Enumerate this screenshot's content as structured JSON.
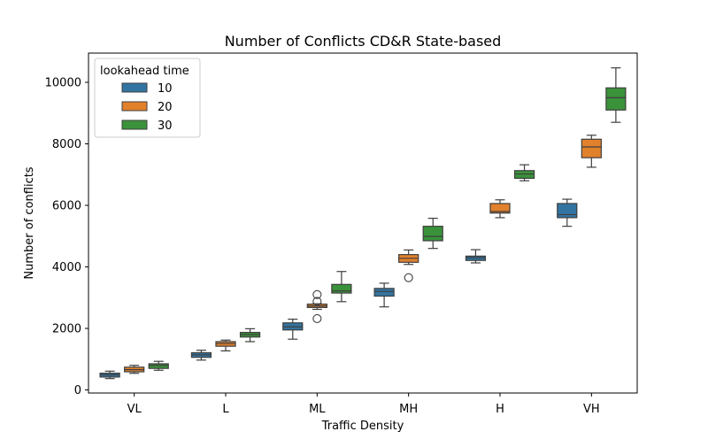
{
  "chart_data": {
    "type": "box",
    "title": "Number of Conflicts CD&R State-based",
    "xlabel": "Traffic Density",
    "ylabel": "Number of conflicts",
    "categories": [
      "VL",
      "L",
      "ML",
      "MH",
      "H",
      "VH"
    ],
    "ylim": [
      -100,
      10950
    ],
    "yticks": [
      0,
      2000,
      4000,
      6000,
      8000,
      10000
    ],
    "legend": {
      "title": "lookahead time",
      "placement": "top-left"
    },
    "series": [
      {
        "name": "10",
        "color": "#3274a1",
        "boxes": [
          {
            "min": 370,
            "q1": 420,
            "median": 490,
            "q3": 545,
            "max": 610,
            "outliers": []
          },
          {
            "min": 970,
            "q1": 1060,
            "median": 1140,
            "q3": 1210,
            "max": 1290,
            "outliers": []
          },
          {
            "min": 1650,
            "q1": 1950,
            "median": 2050,
            "q3": 2180,
            "max": 2300,
            "outliers": []
          },
          {
            "min": 2700,
            "q1": 3050,
            "median": 3200,
            "q3": 3300,
            "max": 3470,
            "outliers": []
          },
          {
            "min": 4130,
            "q1": 4210,
            "median": 4300,
            "q3": 4350,
            "max": 4560,
            "outliers": []
          },
          {
            "min": 5320,
            "q1": 5600,
            "median": 5700,
            "q3": 6060,
            "max": 6200,
            "outliers": []
          }
        ]
      },
      {
        "name": "20",
        "color": "#e1812c",
        "boxes": [
          {
            "min": 540,
            "q1": 590,
            "median": 660,
            "q3": 740,
            "max": 800,
            "outliers": []
          },
          {
            "min": 1270,
            "q1": 1420,
            "median": 1510,
            "q3": 1570,
            "max": 1620,
            "outliers": []
          },
          {
            "min": 2620,
            "q1": 2680,
            "median": 2730,
            "q3": 2790,
            "max": 2800,
            "outliers": [
              2320,
              2880,
              3100
            ]
          },
          {
            "min": 4080,
            "q1": 4150,
            "median": 4280,
            "q3": 4400,
            "max": 4550,
            "outliers": [
              3650
            ]
          },
          {
            "min": 5600,
            "q1": 5750,
            "median": 5800,
            "q3": 6060,
            "max": 6180,
            "outliers": []
          },
          {
            "min": 7240,
            "q1": 7550,
            "median": 7900,
            "q3": 8150,
            "max": 8280,
            "outliers": []
          }
        ]
      },
      {
        "name": "30",
        "color": "#3a923a",
        "boxes": [
          {
            "min": 640,
            "q1": 700,
            "median": 800,
            "q3": 850,
            "max": 930,
            "outliers": []
          },
          {
            "min": 1570,
            "q1": 1720,
            "median": 1800,
            "q3": 1870,
            "max": 1990,
            "outliers": []
          },
          {
            "min": 2870,
            "q1": 3150,
            "median": 3220,
            "q3": 3430,
            "max": 3850,
            "outliers": []
          },
          {
            "min": 4600,
            "q1": 4850,
            "median": 4990,
            "q3": 5320,
            "max": 5580,
            "outliers": []
          },
          {
            "min": 6800,
            "q1": 6880,
            "median": 7020,
            "q3": 7130,
            "max": 7320,
            "outliers": []
          },
          {
            "min": 8700,
            "q1": 9100,
            "median": 9500,
            "q3": 9820,
            "max": 10470,
            "outliers": []
          }
        ]
      }
    ]
  }
}
